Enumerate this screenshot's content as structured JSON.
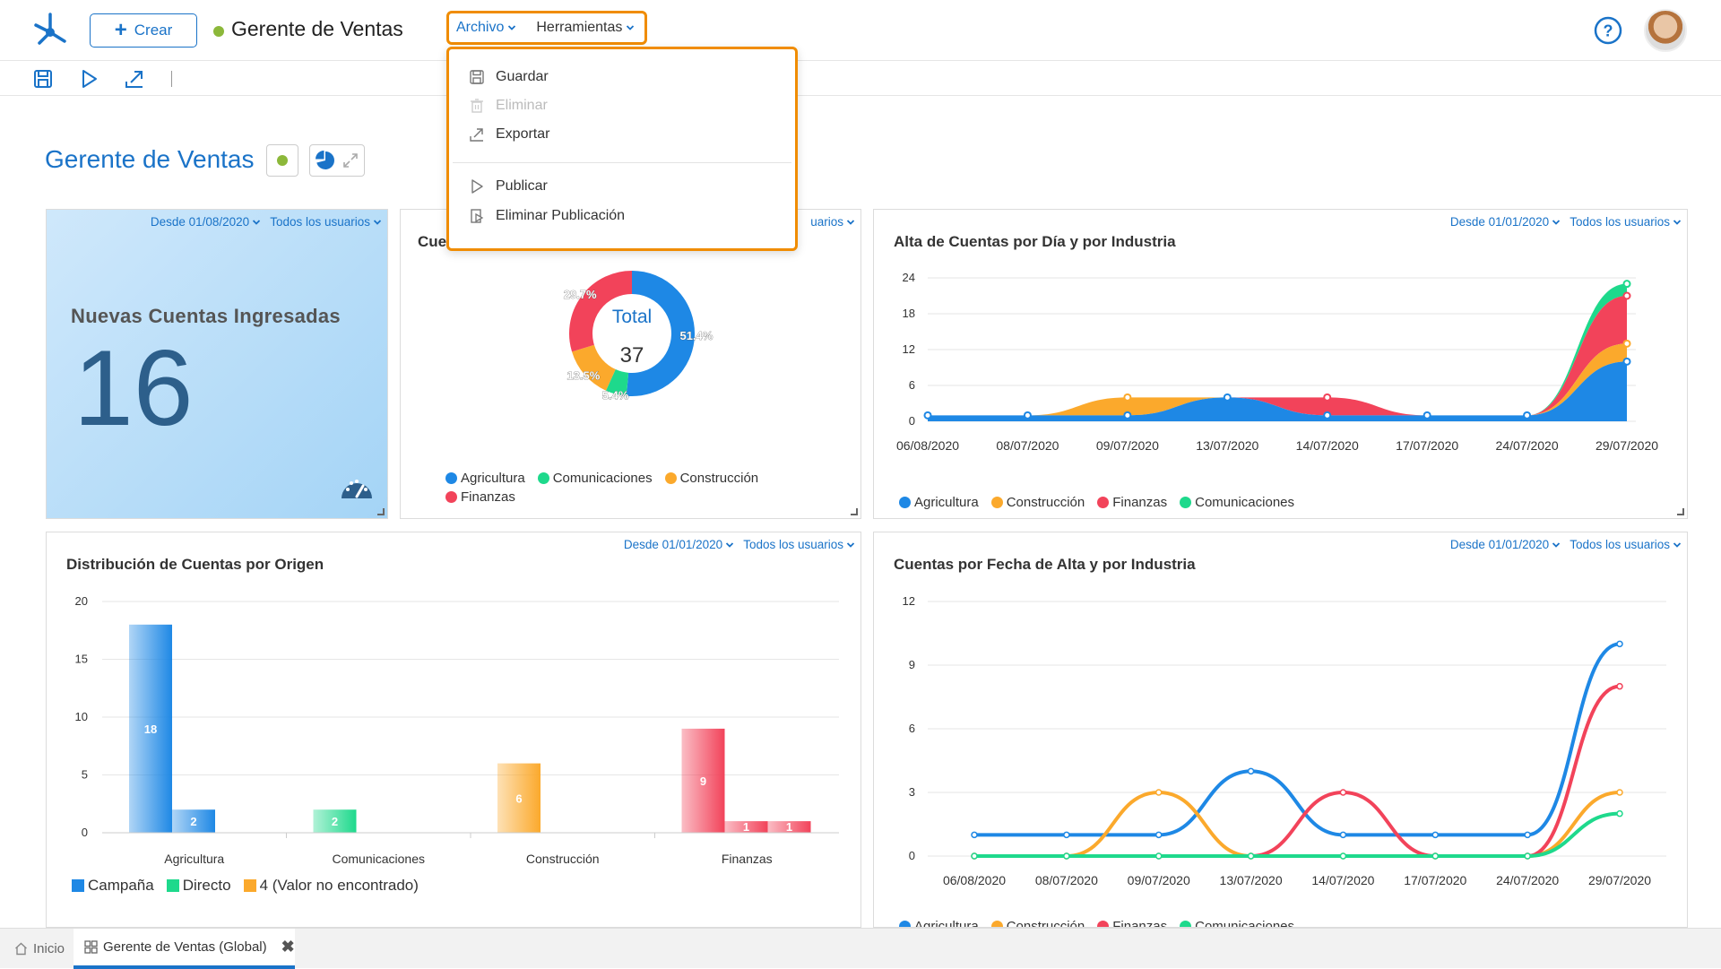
{
  "header": {
    "create_label": "Crear",
    "app_title": "Gerente de Ventas",
    "status_color": "#8cb83a",
    "menus": [
      {
        "label": "Archivo",
        "active": true
      },
      {
        "label": "Herramientas",
        "active": false
      }
    ],
    "help_icon": "question-circle-icon",
    "avatar": "user-avatar"
  },
  "toolbar": {
    "icons": [
      "save-icon",
      "play-icon",
      "export-icon"
    ]
  },
  "archivo_menu": {
    "items": [
      {
        "label": "Guardar",
        "icon": "save-icon",
        "disabled": false
      },
      {
        "label": "Eliminar",
        "icon": "trash-icon",
        "disabled": true
      },
      {
        "label": "Exportar",
        "icon": "export-icon",
        "disabled": false
      },
      {
        "label": "Publicar",
        "icon": "play-icon",
        "disabled": false
      },
      {
        "label": "Eliminar Publicación",
        "icon": "unpublish-icon",
        "disabled": false
      }
    ]
  },
  "dashboard": {
    "title": "Gerente de Ventas",
    "panels": {
      "kpi": {
        "filter_date": "Desde 01/08/2020",
        "filter_users": "Todos los usuarios",
        "title": "Nuevas Cuentas Ingresadas",
        "value": "16"
      },
      "donut": {
        "filter_users": "uarios",
        "title": "Cue"
      },
      "alta_dia": {
        "filter_date": "Desde 01/01/2020",
        "filter_users": "Todos los usuarios",
        "title": "Alta de Cuentas por Día y por Industria"
      },
      "distribucion": {
        "filter_date": "Desde 01/01/2020",
        "filter_users": "Todos los usuarios",
        "title": "Distribución de Cuentas por Origen"
      },
      "fecha_alta": {
        "filter_date": "Desde 01/01/2020",
        "filter_users": "Todos los usuarios",
        "title": "Cuentas por Fecha de Alta y por Industria"
      }
    }
  },
  "colors": {
    "agricultura": "#1e88e5",
    "comunicaciones": "#1ed98c",
    "construccion": "#fba92c",
    "finanzas": "#f2435a",
    "accent": "#1a73c8",
    "highlight": "#f08c00"
  },
  "chart_data": [
    {
      "type": "pie",
      "variant": "donut",
      "center_label": "Total",
      "center_value": "37",
      "slices": [
        {
          "name": "Agricultura",
          "value": 51.4,
          "label": "51.4%"
        },
        {
          "name": "Comunicaciones",
          "value": 5.4,
          "label": "5.4%"
        },
        {
          "name": "Construcción",
          "value": 13.5,
          "label": "13.5%"
        },
        {
          "name": "Finanzas",
          "value": 29.7,
          "label": "29.7%"
        }
      ],
      "legend": [
        "Agricultura",
        "Comunicaciones",
        "Construcción",
        "Finanzas"
      ],
      "legend_placement": "bottom"
    },
    {
      "type": "area",
      "stacked": true,
      "title": "Alta de Cuentas por Día y por Industria",
      "categories": [
        "06/08/2020",
        "08/07/2020",
        "09/07/2020",
        "13/07/2020",
        "14/07/2020",
        "17/07/2020",
        "24/07/2020",
        "29/07/2020"
      ],
      "yticks": [
        0,
        6,
        12,
        18,
        24
      ],
      "ylim": [
        0,
        24
      ],
      "series": [
        {
          "name": "Agricultura",
          "values": [
            1,
            1,
            1,
            4,
            1,
            1,
            1,
            10
          ]
        },
        {
          "name": "Construcción",
          "values": [
            0,
            0,
            3,
            0,
            0,
            0,
            0,
            3
          ]
        },
        {
          "name": "Finanzas",
          "values": [
            0,
            0,
            0,
            0,
            3,
            0,
            0,
            8
          ]
        },
        {
          "name": "Comunicaciones",
          "values": [
            0,
            0,
            0,
            0,
            0,
            0,
            0,
            2
          ]
        }
      ],
      "legend_placement": "bottom"
    },
    {
      "type": "bar",
      "title": "Distribución de Cuentas por Origen",
      "categories": [
        "Agricultura",
        "Comunicaciones",
        "Construcción",
        "Finanzas"
      ],
      "yticks": [
        0,
        5,
        10,
        15,
        20
      ],
      "ylim": [
        0,
        20
      ],
      "series": [
        {
          "name": "Campaña",
          "values": [
            18,
            2,
            6,
            9
          ]
        },
        {
          "name": "Directo",
          "values": [
            2,
            null,
            null,
            1
          ]
        },
        {
          "name": "4 (Valor no encontrado)",
          "values": [
            null,
            null,
            null,
            1
          ]
        }
      ],
      "legend_placement": "bottom-left"
    },
    {
      "type": "line",
      "title": "Cuentas por Fecha de Alta y por Industria",
      "categories": [
        "06/08/2020",
        "08/07/2020",
        "09/07/2020",
        "13/07/2020",
        "14/07/2020",
        "17/07/2020",
        "24/07/2020",
        "29/07/2020"
      ],
      "yticks": [
        0,
        3,
        6,
        9,
        12
      ],
      "ylim": [
        0,
        12
      ],
      "series": [
        {
          "name": "Agricultura",
          "values": [
            1,
            1,
            1,
            4,
            1,
            1,
            1,
            10
          ]
        },
        {
          "name": "Construcción",
          "values": [
            0,
            0,
            3,
            0,
            0,
            0,
            0,
            3
          ]
        },
        {
          "name": "Finanzas",
          "values": [
            0,
            0,
            0,
            0,
            3,
            0,
            0,
            8
          ]
        },
        {
          "name": "Comunicaciones",
          "values": [
            0,
            0,
            0,
            0,
            0,
            0,
            0,
            2
          ]
        }
      ],
      "legend_placement": "bottom"
    }
  ],
  "bottom_tabs": [
    {
      "label": "Inicio",
      "icon": "home-icon",
      "active": false
    },
    {
      "label": "Gerente de Ventas (Global)",
      "icon": "dashboard-icon",
      "active": true
    }
  ]
}
